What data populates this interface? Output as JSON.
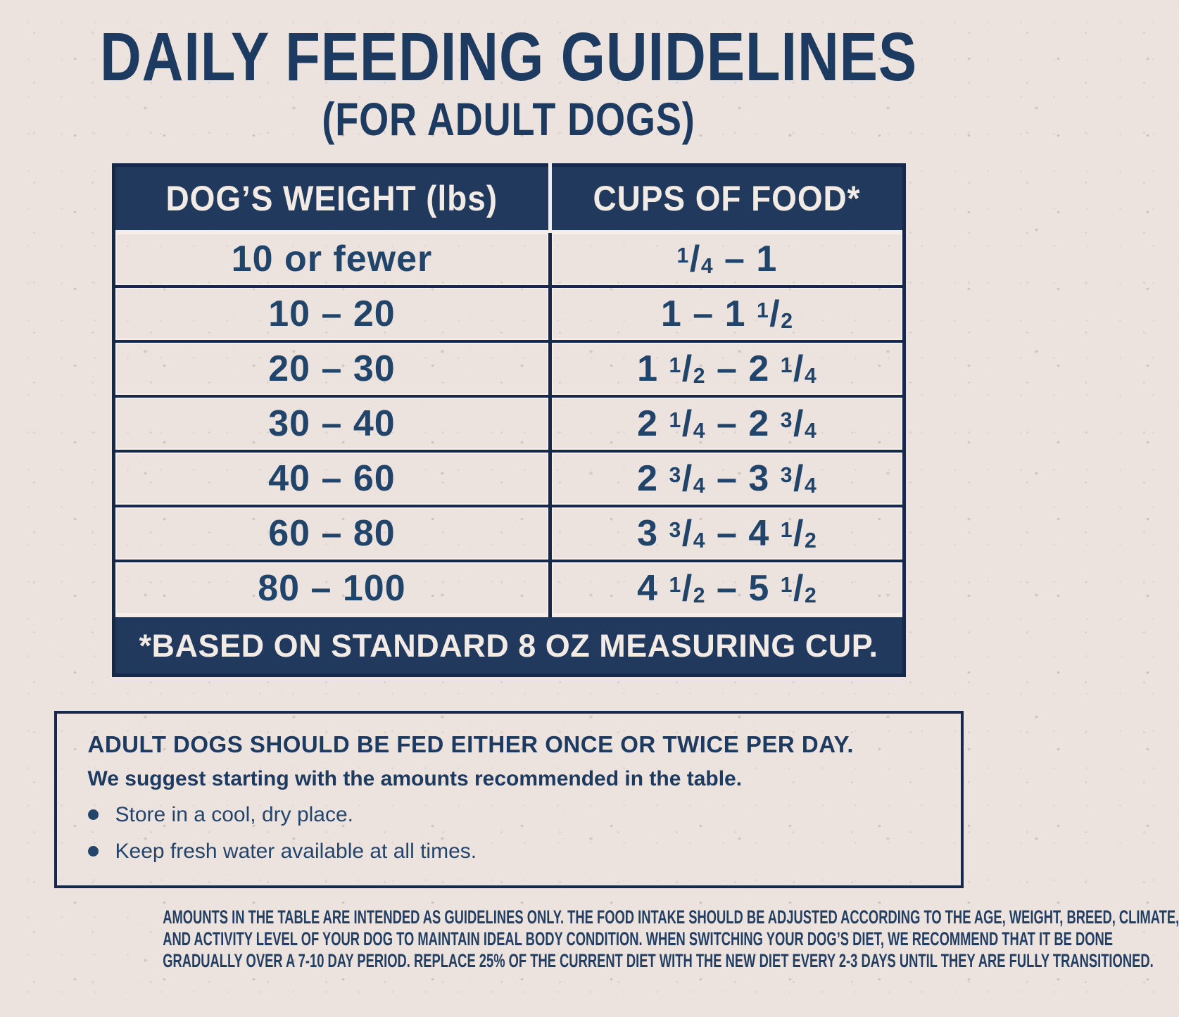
{
  "page": {
    "title": "DAILY FEEDING GUIDELINES",
    "subtitle": "(FOR ADULT DOGS)"
  },
  "table": {
    "headers": [
      "DOG’S WEIGHT (lbs)",
      "CUPS OF FOOD*"
    ],
    "rows": [
      {
        "weight": "10 or fewer",
        "cups": "1/4 – 1"
      },
      {
        "weight": "10 – 20",
        "cups": "1 – 1 1/2"
      },
      {
        "weight": "20 – 30",
        "cups": "1 1/2 – 2 1/4"
      },
      {
        "weight": "30 – 40",
        "cups": "2 1/4 – 2 3/4"
      },
      {
        "weight": "40 – 60",
        "cups": "2 3/4 – 3 3/4"
      },
      {
        "weight": "60 – 80",
        "cups": "3 3/4 – 4 1/2"
      },
      {
        "weight": "80 – 100",
        "cups": "4 1/2 – 5 1/2"
      }
    ],
    "footnote": "*BASED ON STANDARD 8 OZ MEASURING CUP."
  },
  "notes": {
    "heading": "ADULT DOGS SHOULD BE FED EITHER ONCE OR TWICE PER DAY.",
    "subheading": "We suggest starting with the amounts recommended in the table.",
    "bullets": [
      "Store in a cool, dry place.",
      "Keep fresh water available at all times."
    ]
  },
  "disclaimer": {
    "lines": [
      "AMOUNTS IN THE TABLE ARE INTENDED AS GUIDELINES ONLY. THE FOOD INTAKE SHOULD BE ADJUSTED ACCORDING TO THE AGE, WEIGHT, BREED, CLIMATE,",
      "AND ACTIVITY LEVEL OF YOUR DOG TO MAINTAIN IDEAL BODY CONDITION. WHEN SWITCHING YOUR DOG’S DIET, WE RECOMMEND THAT IT BE DONE",
      "GRADUALLY OVER A 7-10 DAY PERIOD. REPLACE 25% OF THE CURRENT DIET WITH THE NEW DIET EVERY 2-3 DAYS UNTIL THEY ARE FULLY TRANSITIONED."
    ]
  },
  "colors": {
    "navy_fill": "#21395C",
    "navy_border": "#16294A",
    "navy_text": "#21446B",
    "cream": "#EDE3DE",
    "light_text": "#F2EAE5"
  }
}
